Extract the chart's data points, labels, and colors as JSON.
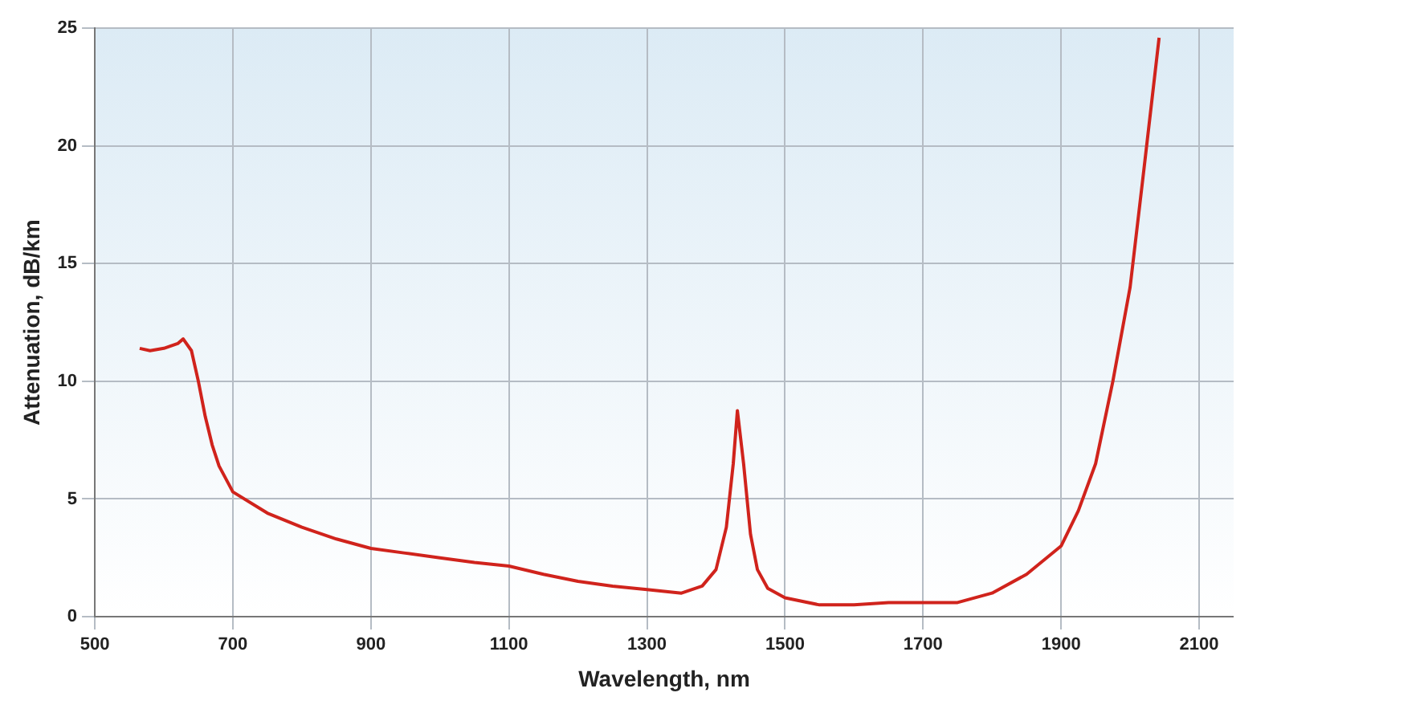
{
  "chart_data": {
    "type": "line",
    "xlabel": "Wavelength, nm",
    "ylabel": "Attenuation, dB/km",
    "series": [
      {
        "color": "#d0231c",
        "x": [
          565,
          580,
          600,
          620,
          628,
          640,
          650,
          660,
          670,
          680,
          700,
          750,
          800,
          850,
          900,
          950,
          1000,
          1050,
          1100,
          1150,
          1200,
          1250,
          1300,
          1350,
          1380,
          1400,
          1415,
          1425,
          1431,
          1440,
          1450,
          1460,
          1475,
          1500,
          1550,
          1600,
          1650,
          1700,
          1750,
          1800,
          1850,
          1900,
          1925,
          1950,
          1975,
          2000,
          2020,
          2042
        ],
        "values": [
          11.4,
          11.3,
          11.4,
          11.6,
          11.8,
          11.3,
          10,
          8.5,
          7.3,
          6.4,
          5.3,
          4.4,
          3.8,
          3.3,
          2.9,
          2.7,
          2.5,
          2.3,
          2.15,
          1.8,
          1.5,
          1.3,
          1.15,
          1.0,
          1.3,
          2.0,
          3.8,
          6.5,
          8.75,
          6.5,
          3.5,
          2,
          1.2,
          0.8,
          0.5,
          0.5,
          0.6,
          0.6,
          0.6,
          1.0,
          1.8,
          3.0,
          4.5,
          6.5,
          10,
          14,
          19,
          24.6
        ]
      }
    ],
    "xlim": [
      500,
      2150
    ],
    "ylim": [
      0,
      25
    ],
    "xticks": [
      500,
      700,
      900,
      1100,
      1300,
      1500,
      1700,
      1900,
      2100
    ],
    "yticks": [
      0,
      5,
      10,
      15,
      20,
      25
    ],
    "grid": true,
    "line_style": "solid",
    "marker": "none"
  }
}
